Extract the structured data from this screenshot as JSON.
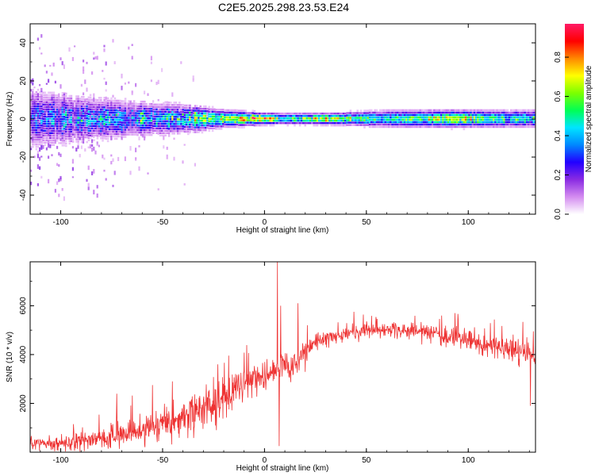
{
  "title": "C2E5.2025.298.23.53.E24",
  "chart_data": [
    {
      "type": "heatmap",
      "xlabel": "Height of straight line (km)",
      "ylabel": "Frequency (Hz)",
      "xlim": [
        -115,
        133
      ],
      "ylim": [
        -50,
        50
      ],
      "x_ticks": [
        "-100",
        "-50",
        "0",
        "50",
        "100"
      ],
      "y_ticks": [
        "-40",
        "-20",
        "0",
        "20",
        "40"
      ],
      "colorbar": {
        "label": "Normalized spectral amplitude",
        "range": [
          0,
          0.97
        ],
        "ticks": [
          "0.0",
          "0.2",
          "0.4",
          "0.6",
          "0.8"
        ],
        "colors": [
          "#ffffff",
          "#d48cf0",
          "#8a2be2",
          "#2200ff",
          "#0088ff",
          "#00e5ff",
          "#00ff55",
          "#7cff00",
          "#ffff00",
          "#ff8800",
          "#ff0000",
          "#ff1a66"
        ]
      },
      "profile": [
        {
          "x": -115,
          "bw": 10,
          "peak": 0.32,
          "scatter": 1.0
        },
        {
          "x": -100,
          "bw": 9,
          "peak": 0.38,
          "scatter": 1.0
        },
        {
          "x": -80,
          "bw": 7,
          "peak": 0.42,
          "scatter": 0.8
        },
        {
          "x": -60,
          "bw": 6,
          "peak": 0.45,
          "scatter": 0.4
        },
        {
          "x": -40,
          "bw": 5,
          "peak": 0.55,
          "scatter": 0.2
        },
        {
          "x": -20,
          "bw": 3,
          "peak": 0.75,
          "scatter": 0.05
        },
        {
          "x": 0,
          "bw": 2,
          "peak": 0.92,
          "scatter": 0.0
        },
        {
          "x": 10,
          "bw": 2,
          "peak": 0.55,
          "scatter": 0.0
        },
        {
          "x": 30,
          "bw": 2,
          "peak": 0.8,
          "scatter": 0.0
        },
        {
          "x": 60,
          "bw": 3,
          "peak": 0.5,
          "scatter": 0.0
        },
        {
          "x": 90,
          "bw": 3,
          "peak": 0.8,
          "scatter": 0.0
        },
        {
          "x": 110,
          "bw": 3,
          "peak": 0.6,
          "scatter": 0.0
        },
        {
          "x": 133,
          "bw": 3,
          "peak": 0.55,
          "scatter": 0.0
        }
      ]
    },
    {
      "type": "line",
      "xlabel": "Height of straight line (km)",
      "ylabel": "SNR (10 * v/v)",
      "xlim": [
        -115,
        133
      ],
      "ylim": [
        0,
        7800
      ],
      "x_ticks": [
        "-100",
        "-50",
        "0",
        "50",
        "100"
      ],
      "y_ticks": [
        "2000",
        "4000",
        "6000"
      ],
      "series": [
        {
          "color": "#ee3333",
          "envelope": [
            {
              "x": -115,
              "mean": 350,
              "noise": 250
            },
            {
              "x": -100,
              "mean": 400,
              "noise": 300
            },
            {
              "x": -80,
              "mean": 550,
              "noise": 400
            },
            {
              "x": -60,
              "mean": 900,
              "noise": 500
            },
            {
              "x": -45,
              "mean": 1200,
              "noise": 600
            },
            {
              "x": -30,
              "mean": 1800,
              "noise": 700
            },
            {
              "x": -20,
              "mean": 2200,
              "noise": 700
            },
            {
              "x": -10,
              "mean": 2700,
              "noise": 600
            },
            {
              "x": 0,
              "mean": 3100,
              "noise": 500
            },
            {
              "x": 5,
              "mean": 3400,
              "noise": 500
            },
            {
              "x": 15,
              "mean": 3600,
              "noise": 500
            },
            {
              "x": 25,
              "mean": 4500,
              "noise": 300
            },
            {
              "x": 40,
              "mean": 4900,
              "noise": 250
            },
            {
              "x": 60,
              "mean": 5000,
              "noise": 250
            },
            {
              "x": 80,
              "mean": 4900,
              "noise": 300
            },
            {
              "x": 100,
              "mean": 4600,
              "noise": 400
            },
            {
              "x": 120,
              "mean": 4200,
              "noise": 500
            },
            {
              "x": 133,
              "mean": 3900,
              "noise": 500
            }
          ],
          "spikes": [
            {
              "x": 6.3,
              "y": 7800
            },
            {
              "x": 7.2,
              "y": 250
            },
            {
              "x": 8.0,
              "y": 6000
            },
            {
              "x": 16.5,
              "y": 6100
            },
            {
              "x": 21.0,
              "y": 5200
            },
            {
              "x": -72.5,
              "y": 2400
            },
            {
              "x": -55.0,
              "y": 2750
            },
            {
              "x": 87.0,
              "y": 5600
            },
            {
              "x": 130.5,
              "y": 1900
            }
          ]
        }
      ]
    }
  ]
}
